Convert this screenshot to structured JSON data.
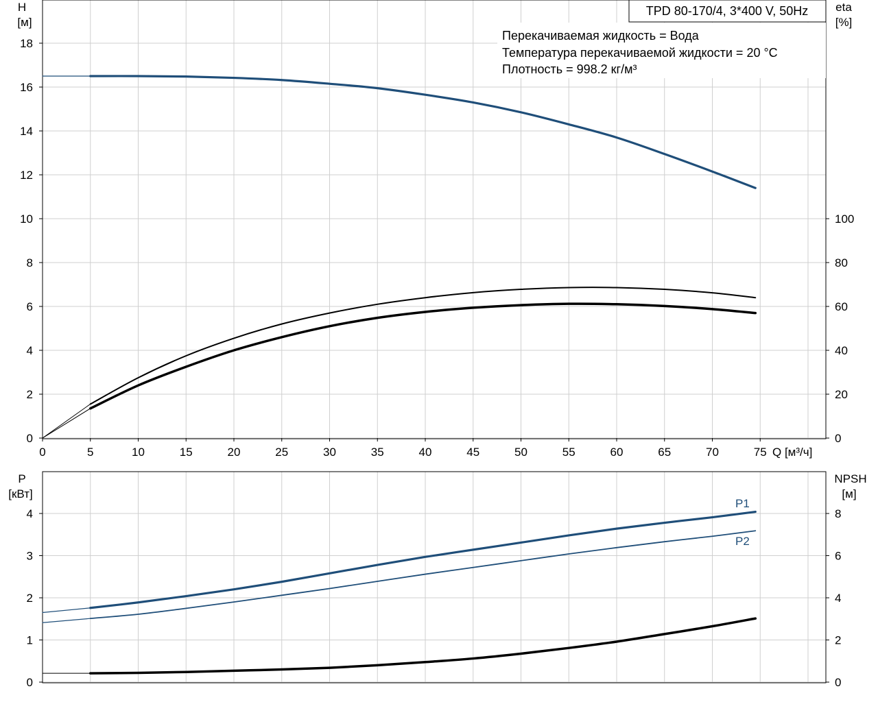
{
  "header": {
    "title": "TPD 80-170/4, 3*400 V, 50Hz",
    "lines": [
      "Перекачиваемая жидкость = Вода",
      "Температура перекачиваемой жидкости = 20 °C",
      "Плотность = 998.2 кг/м³"
    ]
  },
  "axes": {
    "top_left_label": [
      "H",
      "[м]"
    ],
    "top_right_label": [
      "eta",
      "[%]"
    ],
    "bottom_left_label": [
      "P",
      "[кВт]"
    ],
    "bottom_right_label": [
      "NPSH",
      "[м]"
    ],
    "x_label": "Q [м³/ч]"
  },
  "colors": {
    "blue": "#1f4e79",
    "black": "#000000",
    "grid": "#cfcfcf"
  },
  "chart_data": [
    {
      "type": "line",
      "panel": "top",
      "x_ticks": [
        0,
        5,
        10,
        15,
        20,
        25,
        30,
        35,
        40,
        45,
        50,
        55,
        60,
        65,
        70,
        75
      ],
      "xlim": [
        0,
        80
      ],
      "ylim_left": [
        0,
        20
      ],
      "y_ticks_left": [
        0,
        2,
        4,
        6,
        8,
        10,
        12,
        14,
        16,
        18
      ],
      "ylim_right": [
        0,
        200
      ],
      "y_ticks_right": [
        0,
        20,
        40,
        60,
        80,
        100
      ],
      "grid": true,
      "series": [
        {
          "axis": "left",
          "color": "blue",
          "width": 3.2,
          "x": [
            5,
            10,
            15,
            20,
            25,
            30,
            35,
            40,
            45,
            50,
            55,
            60,
            65,
            70,
            74.5
          ],
          "y": [
            16.5,
            16.5,
            16.48,
            16.42,
            16.32,
            16.15,
            15.95,
            15.65,
            15.3,
            14.85,
            14.3,
            13.7,
            12.95,
            12.15,
            11.4
          ]
        },
        {
          "axis": "left",
          "color": "blue",
          "width": 1.2,
          "x": [
            0,
            5
          ],
          "y": [
            16.5,
            16.5
          ]
        },
        {
          "axis": "right",
          "color": "black",
          "width": 2,
          "x": [
            5,
            10,
            15,
            20,
            25,
            30,
            35,
            40,
            45,
            50,
            55,
            60,
            65,
            70,
            74.5
          ],
          "y": [
            15.5,
            27.5,
            37.5,
            45.5,
            52,
            57,
            61,
            64,
            66.3,
            67.8,
            68.6,
            68.6,
            67.8,
            66.2,
            64
          ]
        },
        {
          "axis": "right",
          "color": "black",
          "width": 1,
          "x": [
            0,
            5
          ],
          "y": [
            0,
            15.5
          ]
        },
        {
          "axis": "right",
          "color": "black",
          "width": 3.5,
          "x": [
            5,
            10,
            15,
            20,
            25,
            30,
            35,
            40,
            45,
            50,
            55,
            60,
            65,
            70,
            74.5
          ],
          "y": [
            13.5,
            24,
            32.5,
            40,
            46,
            51,
            54.8,
            57.5,
            59.4,
            60.6,
            61.2,
            61,
            60.2,
            58.8,
            57
          ]
        },
        {
          "axis": "right",
          "color": "black",
          "width": 1,
          "x": [
            0,
            5
          ],
          "y": [
            0,
            13.5
          ]
        }
      ]
    },
    {
      "type": "line",
      "panel": "bottom",
      "x_ticks": [
        0,
        5,
        10,
        15,
        20,
        25,
        30,
        35,
        40,
        45,
        50,
        55,
        60,
        65,
        70,
        75
      ],
      "xlim": [
        0,
        80
      ],
      "ylim_left": [
        0,
        5
      ],
      "y_ticks_left": [
        0,
        1,
        2,
        3,
        4
      ],
      "ylim_right": [
        0,
        10
      ],
      "y_ticks_right": [
        0,
        2,
        4,
        6,
        8
      ],
      "grid": true,
      "series": [
        {
          "name": "P1",
          "axis": "left",
          "color": "blue",
          "width": 3.2,
          "x": [
            5,
            10,
            15,
            20,
            25,
            30,
            35,
            40,
            45,
            50,
            55,
            60,
            65,
            70,
            74.5
          ],
          "y": [
            1.76,
            1.89,
            2.04,
            2.2,
            2.38,
            2.58,
            2.78,
            2.97,
            3.14,
            3.31,
            3.48,
            3.64,
            3.78,
            3.91,
            4.04
          ]
        },
        {
          "axis": "left",
          "color": "blue",
          "width": 1.2,
          "x": [
            0,
            5
          ],
          "y": [
            1.65,
            1.76
          ]
        },
        {
          "name": "P2",
          "axis": "left",
          "color": "blue",
          "width": 1.8,
          "x": [
            5,
            10,
            15,
            20,
            25,
            30,
            35,
            40,
            45,
            50,
            55,
            60,
            65,
            70,
            74.5
          ],
          "y": [
            1.51,
            1.61,
            1.75,
            1.9,
            2.06,
            2.22,
            2.39,
            2.56,
            2.72,
            2.88,
            3.04,
            3.19,
            3.33,
            3.46,
            3.59
          ]
        },
        {
          "axis": "left",
          "color": "blue",
          "width": 1.2,
          "x": [
            0,
            5
          ],
          "y": [
            1.41,
            1.51
          ]
        },
        {
          "axis": "right",
          "color": "black",
          "width": 3.5,
          "x": [
            5,
            10,
            15,
            20,
            25,
            30,
            35,
            40,
            45,
            50,
            55,
            60,
            65,
            70,
            74.5
          ],
          "y": [
            0.42,
            0.44,
            0.48,
            0.54,
            0.6,
            0.68,
            0.8,
            0.95,
            1.12,
            1.35,
            1.62,
            1.92,
            2.28,
            2.65,
            3.02
          ]
        },
        {
          "axis": "right",
          "color": "black",
          "width": 1,
          "x": [
            0,
            5
          ],
          "y": [
            0.42,
            0.42
          ]
        }
      ]
    }
  ]
}
